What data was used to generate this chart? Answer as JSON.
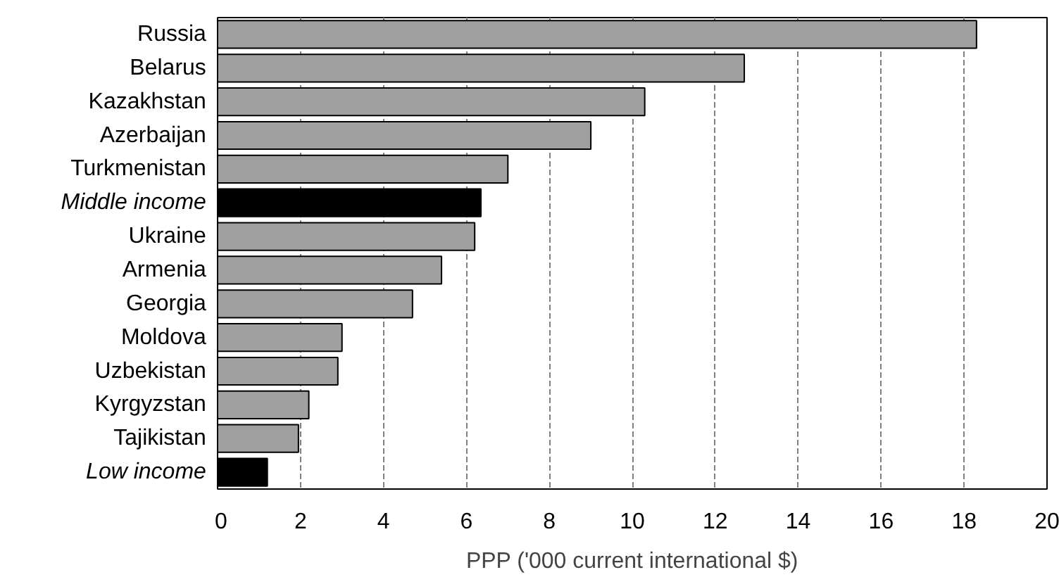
{
  "chart_data": {
    "type": "bar",
    "orientation": "horizontal",
    "xlabel": "PPP ('000 current international $)",
    "categories": [
      "Russia",
      "Belarus",
      "Kazakhstan",
      "Azerbaijan",
      "Turkmenistan",
      "Middle income",
      "Ukraine",
      "Armenia",
      "Georgia",
      "Moldova",
      "Uzbekistan",
      "Kyrgyzstan",
      "Tajikistan",
      "Low income"
    ],
    "values": [
      18.3,
      12.7,
      10.3,
      9.0,
      7.0,
      6.35,
      6.2,
      5.4,
      4.7,
      3.0,
      2.9,
      2.2,
      1.95,
      1.2
    ],
    "colors": [
      "#a0a0a0",
      "#a0a0a0",
      "#a0a0a0",
      "#a0a0a0",
      "#a0a0a0",
      "#000000",
      "#a0a0a0",
      "#a0a0a0",
      "#a0a0a0",
      "#a0a0a0",
      "#a0a0a0",
      "#a0a0a0",
      "#a0a0a0",
      "#000000"
    ],
    "xlim": [
      0,
      20
    ],
    "xticks": [
      0,
      2,
      4,
      6,
      8,
      10,
      12,
      14,
      16,
      18,
      20
    ],
    "grid": "x"
  }
}
